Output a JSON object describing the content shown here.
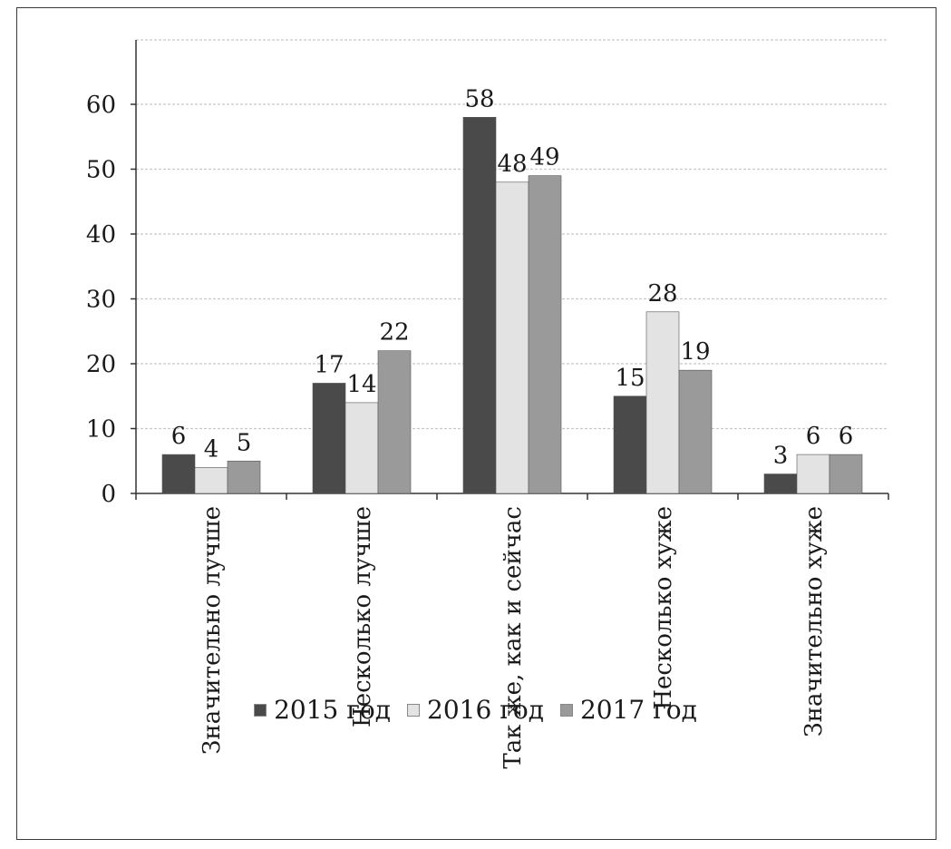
{
  "chart_data": {
    "type": "bar",
    "categories": [
      "Значительно лучше",
      "Несколько лучше",
      "Так же, как и сейчас",
      "Несколько хуже",
      "Значительно хуже"
    ],
    "series": [
      {
        "name": "2015 год",
        "values": [
          6,
          17,
          58,
          15,
          3
        ]
      },
      {
        "name": "2016 год",
        "values": [
          4,
          14,
          48,
          28,
          6
        ]
      },
      {
        "name": "2017 год",
        "values": [
          5,
          22,
          49,
          19,
          6
        ]
      }
    ],
    "colors": [
      "#4a4a4a",
      "#e3e3e3",
      "#9a9a9a"
    ],
    "ylim": [
      0,
      60
    ],
    "yticks": [
      "0",
      "10",
      "20",
      "30",
      "40",
      "50",
      "60"
    ],
    "grid": true,
    "legend_position": "bottom",
    "title": "",
    "xlabel": "",
    "ylabel": ""
  }
}
